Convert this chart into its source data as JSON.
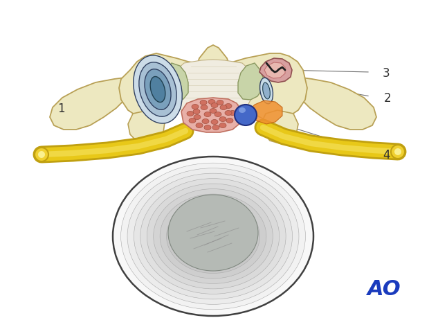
{
  "figure_width": 6.2,
  "figure_height": 4.59,
  "dpi": 100,
  "background_color": "#ffffff",
  "ao_logo_color": "#1a3bbd",
  "ao_logo_fontsize": 22,
  "label_fontsize": 12,
  "line_color": "#707070",
  "colors": {
    "vertebra": "#ede8c0",
    "vertebra_edge": "#b8a055",
    "vertebra_shadow": "#d8cc98",
    "disc_white": "#f8f8f8",
    "disc_rings": [
      "#f0f0f0",
      "#e8e8e8",
      "#e0e0e0",
      "#d8d8d8",
      "#d0d0d0",
      "#c8c8c8",
      "#c0c0c0"
    ],
    "disc_nucleus": "#b8bcb8",
    "disc_nucleus_lines": "#909890",
    "spinal_canal": "#f5f0e8",
    "dura_lines": "#c0b890",
    "ligamentum_flavum_left": "#c8d4a8",
    "ligamentum_flavum_right": "#c8d4a8",
    "lig_edge": "#8a9860",
    "facet_pink_left": "#e0a8a0",
    "facet_pink_right": "#e0a8a0",
    "facet_edge": "#c07070",
    "disc_hern_light": "#b8ccd8",
    "disc_hern_mid": "#8aaac0",
    "disc_hern_dark": "#5880a0",
    "disc_hern_edge": "#304060",
    "synovial_cyst": "#4468c8",
    "synovial_highlight": "#7898e0",
    "cord_fill": "#e8b0a8",
    "cord_edge": "#c07868",
    "cord_dots": "#d07060",
    "nerve_yellow": "#e8c818",
    "nerve_yellow_edge": "#c0a010",
    "nerve_orange_glow": "#f0a030",
    "orange_herniation": "#f08830"
  }
}
